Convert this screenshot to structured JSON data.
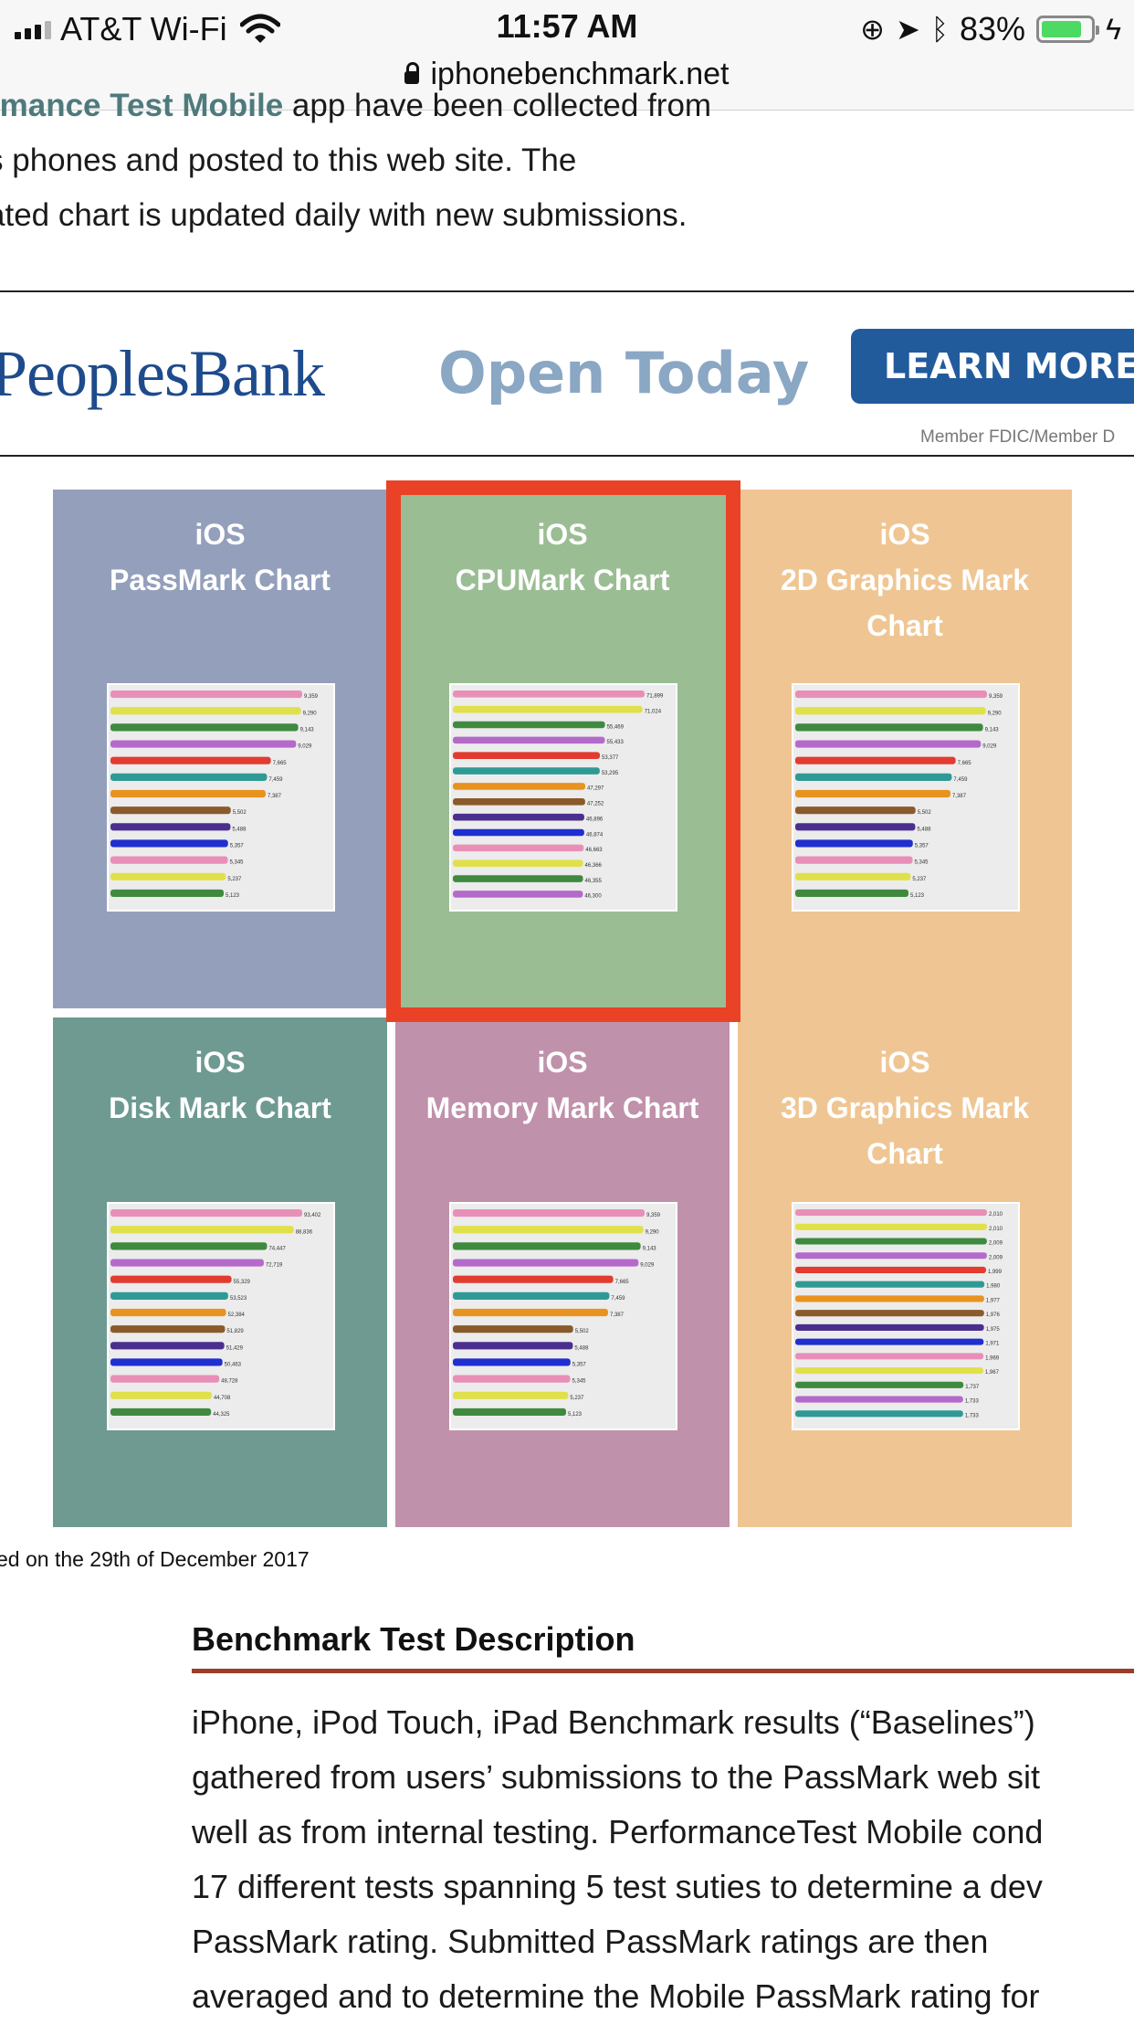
{
  "status_bar": {
    "carrier": "AT&T Wi-Fi",
    "time": "11:57 AM",
    "battery_percent": "83%",
    "battery_level": 0.83,
    "url": "iphonebenchmark.net"
  },
  "intro": {
    "line1_link": "rmance Test Mobile",
    "line1_rest": " app have been collected from",
    "line2": "s phones and posted to this web site. The",
    "line3": "ated chart is updated daily with new submissions."
  },
  "ad": {
    "brand": "PeoplesBank",
    "headline": "Open Today",
    "cta": "LEARN MORE",
    "disclaimer": "Member FDIC/Member D"
  },
  "charts": [
    {
      "line1": "iOS",
      "line2": "PassMark Chart",
      "color": "#949fbc",
      "labels": [
        "9,359",
        "9,290",
        "9,143",
        "9,029",
        "7,665",
        "7,459",
        "7,387",
        "5,502",
        "5,488",
        "5,357",
        "5,345",
        "5,237",
        "5,123"
      ]
    },
    {
      "line1": "iOS",
      "line2": "CPUMark Chart",
      "color": "#9bbd94",
      "labels": [
        "71,899",
        "71,024",
        "55,469",
        "55,433",
        "53,377",
        "53,295",
        "47,297",
        "47,252",
        "46,896",
        "46,874",
        "46,663",
        "46,366",
        "46,355",
        "46,300"
      ]
    },
    {
      "line1": "iOS",
      "line2": "2D Graphics Mark Chart",
      "color": "#efc693",
      "labels": [
        "9,359",
        "9,290",
        "9,143",
        "9,029",
        "7,665",
        "7,459",
        "7,387",
        "5,502",
        "5,488",
        "5,357",
        "5,345",
        "5,237",
        "5,123"
      ]
    },
    {
      "line1": "iOS",
      "line2": "Disk Mark Chart",
      "color": "#6e9a91",
      "labels": [
        "93,402",
        "88,836",
        "74,447",
        "72,719",
        "55,329",
        "53,523",
        "52,384",
        "51,829",
        "51,429",
        "50,463",
        "48,728",
        "44,708",
        "44,325"
      ]
    },
    {
      "line1": "iOS",
      "line2": "Memory Mark Chart",
      "color": "#c091ab",
      "labels": [
        "9,359",
        "9,290",
        "9,143",
        "9,029",
        "7,665",
        "7,459",
        "7,387",
        "5,502",
        "5,488",
        "5,357",
        "5,345",
        "5,237",
        "5,123"
      ]
    },
    {
      "line1": "iOS",
      "line2": "3D Graphics Mark Chart",
      "color": "#efc693",
      "labels": [
        "2,010",
        "2,010",
        "2,009",
        "2,009",
        "1,999",
        "1,980",
        "1,977",
        "1,976",
        "1,975",
        "1,971",
        "1,969",
        "1,967",
        "1,737",
        "1,733",
        "1,733"
      ]
    }
  ],
  "updated_note": "ed on the 29th of December 2017",
  "section": {
    "title": "Benchmark Test Description",
    "lines": [
      "iPhone, iPod Touch, iPad Benchmark results (“Baselines”)",
      "gathered from users’ submissions to the PassMark web sit",
      "well as from internal testing. PerformanceTest Mobile cond",
      "17 different tests spanning 5 test suties to determine a dev",
      "PassMark rating. Submitted PassMark ratings are then",
      "averaged and to determine the Mobile PassMark rating for"
    ]
  }
}
